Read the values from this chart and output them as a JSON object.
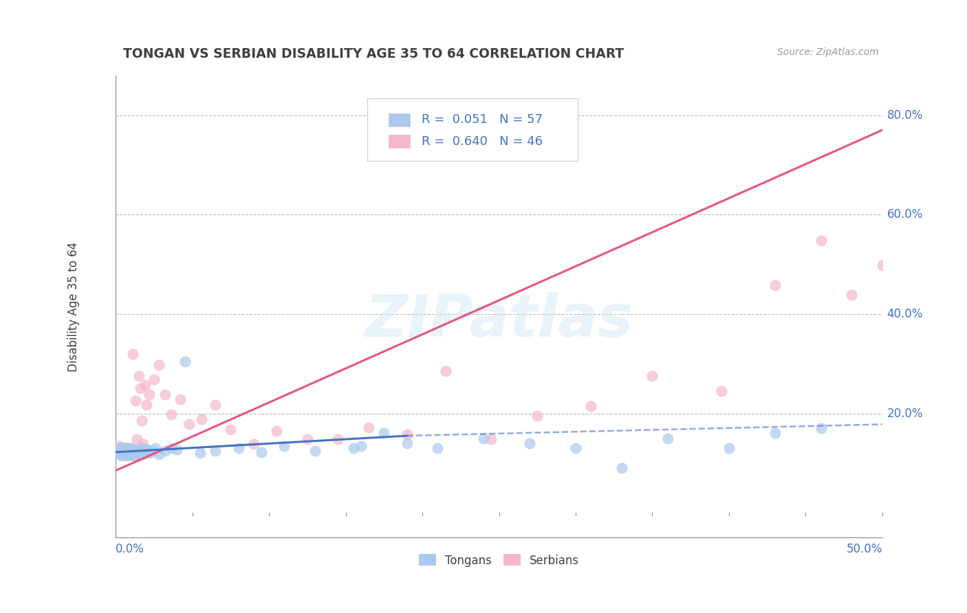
{
  "title": "TONGAN VS SERBIAN DISABILITY AGE 35 TO 64 CORRELATION CHART",
  "source_text": "Source: ZipAtlas.com",
  "ylabel": "Disability Age 35 to 64",
  "xlim": [
    0.0,
    0.5
  ],
  "ylim": [
    -0.05,
    0.88
  ],
  "ytick_labels": [
    "20.0%",
    "40.0%",
    "60.0%",
    "80.0%"
  ],
  "ytick_positions": [
    0.2,
    0.4,
    0.6,
    0.8
  ],
  "legend_entries": [
    {
      "label": "R =  0.051   N = 57",
      "color": "#aac9ed"
    },
    {
      "label": "R =  0.640   N = 46",
      "color": "#f5b8c8"
    }
  ],
  "tongan_color": "#aac9ed",
  "serbian_color": "#f5b8c8",
  "tongan_line_color": "#4472c4",
  "serbian_line_color": "#e8547a",
  "legend_text_color": "#4472c4",
  "background_color": "#ffffff",
  "title_color": "#404040",
  "axis_label_color": "#4472c4",
  "watermark_text": "ZIPatlas",
  "tongan_scatter_x": [
    0.001,
    0.002,
    0.003,
    0.003,
    0.004,
    0.004,
    0.005,
    0.005,
    0.006,
    0.006,
    0.007,
    0.007,
    0.008,
    0.008,
    0.009,
    0.009,
    0.01,
    0.01,
    0.011,
    0.011,
    0.012,
    0.013,
    0.014,
    0.015,
    0.016,
    0.017,
    0.018,
    0.019,
    0.02,
    0.021,
    0.022,
    0.024,
    0.026,
    0.028,
    0.032,
    0.036,
    0.04,
    0.045,
    0.055,
    0.065,
    0.08,
    0.095,
    0.11,
    0.13,
    0.155,
    0.175,
    0.19,
    0.21,
    0.24,
    0.27,
    0.3,
    0.33,
    0.36,
    0.16,
    0.4,
    0.43,
    0.46
  ],
  "tongan_scatter_y": [
    0.125,
    0.122,
    0.118,
    0.13,
    0.115,
    0.128,
    0.12,
    0.132,
    0.118,
    0.127,
    0.122,
    0.13,
    0.115,
    0.128,
    0.12,
    0.125,
    0.118,
    0.13,
    0.115,
    0.127,
    0.122,
    0.128,
    0.12,
    0.115,
    0.125,
    0.13,
    0.118,
    0.127,
    0.122,
    0.128,
    0.12,
    0.125,
    0.13,
    0.118,
    0.125,
    0.13,
    0.127,
    0.305,
    0.12,
    0.125,
    0.13,
    0.122,
    0.135,
    0.125,
    0.13,
    0.16,
    0.14,
    0.13,
    0.15,
    0.14,
    0.13,
    0.09,
    0.15,
    0.135,
    0.13,
    0.16,
    0.17
  ],
  "serbian_scatter_x": [
    0.001,
    0.002,
    0.003,
    0.004,
    0.005,
    0.006,
    0.007,
    0.008,
    0.009,
    0.01,
    0.011,
    0.012,
    0.013,
    0.014,
    0.015,
    0.016,
    0.017,
    0.018,
    0.019,
    0.02,
    0.022,
    0.025,
    0.028,
    0.032,
    0.036,
    0.042,
    0.048,
    0.056,
    0.065,
    0.075,
    0.09,
    0.105,
    0.125,
    0.145,
    0.165,
    0.19,
    0.215,
    0.245,
    0.275,
    0.31,
    0.35,
    0.395,
    0.43,
    0.46,
    0.48,
    0.5
  ],
  "serbian_scatter_y": [
    0.128,
    0.135,
    0.118,
    0.13,
    0.122,
    0.128,
    0.115,
    0.132,
    0.12,
    0.125,
    0.32,
    0.115,
    0.225,
    0.148,
    0.275,
    0.25,
    0.185,
    0.138,
    0.258,
    0.218,
    0.238,
    0.268,
    0.298,
    0.238,
    0.198,
    0.228,
    0.178,
    0.188,
    0.218,
    0.168,
    0.138,
    0.165,
    0.148,
    0.148,
    0.172,
    0.158,
    0.285,
    0.148,
    0.195,
    0.215,
    0.275,
    0.245,
    0.458,
    0.548,
    0.438,
    0.498
  ],
  "tongan_line_solid": {
    "x0": 0.0,
    "x1": 0.19,
    "y0": 0.122,
    "y1": 0.155
  },
  "tongan_line_dashed": {
    "x0": 0.19,
    "x1": 0.5,
    "y0": 0.155,
    "y1": 0.178
  },
  "serbian_line": {
    "x0": 0.0,
    "x1": 0.5,
    "y0": 0.085,
    "y1": 0.77
  }
}
